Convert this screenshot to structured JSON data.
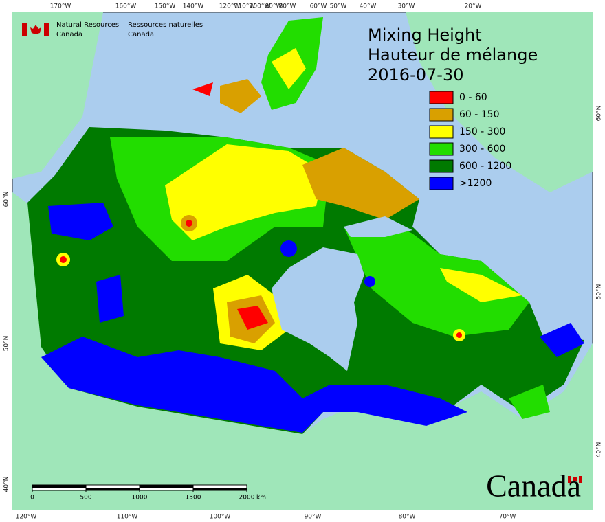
{
  "header": {
    "agency_en": [
      "Natural Resources",
      "Canada"
    ],
    "agency_fr": [
      "Ressources naturelles",
      "Canada"
    ]
  },
  "title": [
    "Mixing Height",
    "Hauteur de mélange",
    "2016-07-30"
  ],
  "legend": [
    {
      "label": "0 - 60",
      "color": "#ff0000"
    },
    {
      "label": "60 - 150",
      "color": "#d9a000"
    },
    {
      "label": "150 - 300",
      "color": "#ffff00"
    },
    {
      "label": "300 - 600",
      "color": "#22dd00"
    },
    {
      "label": "600 - 1200",
      "color": "#007a00"
    },
    {
      "label": ">1200",
      "color": "#0000ff"
    }
  ],
  "graticule": {
    "top": [
      "170°W",
      "160°W",
      "150°W",
      "140°W",
      "120°W",
      "110°W",
      "100°W",
      "90°W",
      "80°W",
      "60°W",
      "50°W",
      "40°W",
      "30°W",
      "20°W"
    ],
    "bottom": [
      "120°W",
      "110°W",
      "100°W",
      "90°W",
      "80°W",
      "70°W"
    ],
    "left": [
      "60°N",
      "50°N",
      "40°N"
    ],
    "right": [
      "60°N",
      "50°N",
      "40°N"
    ]
  },
  "scale_bar": {
    "ticks": [
      0,
      500,
      1000,
      1500,
      2000
    ],
    "unit": "km"
  },
  "wordmark": "Canada"
}
